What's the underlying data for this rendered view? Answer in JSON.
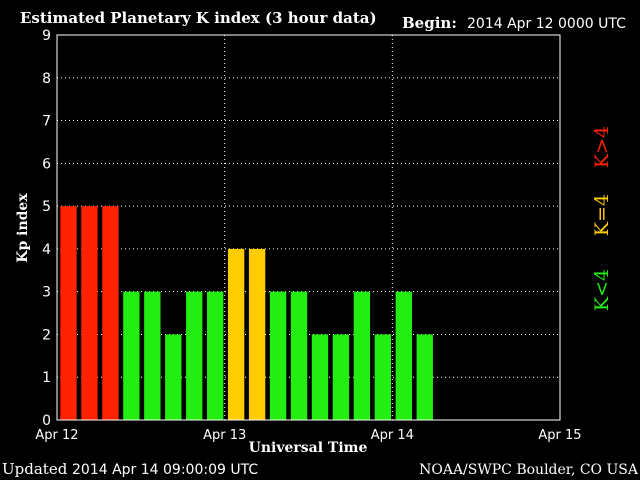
{
  "header": {
    "title": "Estimated Planetary K index (3 hour data)",
    "begin_label": "Begin:",
    "begin_value": "2014 Apr 12 0000 UTC"
  },
  "footer": {
    "updated_label": "Updated",
    "updated_value": "2014 Apr 14 09:00:09 UTC",
    "credit": "NOAA/SWPC Boulder, CO USA"
  },
  "legend": {
    "low": "K<4",
    "equal": "K=4",
    "high": "K>4"
  },
  "colors": {
    "background": "#000000",
    "low": "#22ee11",
    "equal": "#ffcc00",
    "high": "#ff2200",
    "grid": "#ffffff"
  },
  "chart_data": {
    "type": "bar",
    "title": "Estimated Planetary K index (3 hour data)",
    "xlabel": "Universal Time",
    "ylabel": "Kp index",
    "ylim": [
      0,
      9
    ],
    "yticks": [
      0,
      1,
      2,
      3,
      4,
      5,
      6,
      7,
      8,
      9
    ],
    "grid": true,
    "interval_hours": 3,
    "x_range_days": [
      0,
      3
    ],
    "x_ticks": [
      {
        "day": 0,
        "label": "Apr 12"
      },
      {
        "day": 1,
        "label": "Apr 13"
      },
      {
        "day": 2,
        "label": "Apr 14"
      },
      {
        "day": 3,
        "label": "Apr 15"
      }
    ],
    "values": [
      5,
      5,
      5,
      3,
      3,
      2,
      3,
      3,
      4,
      4,
      3,
      3,
      2,
      2,
      3,
      2,
      3,
      2
    ]
  }
}
